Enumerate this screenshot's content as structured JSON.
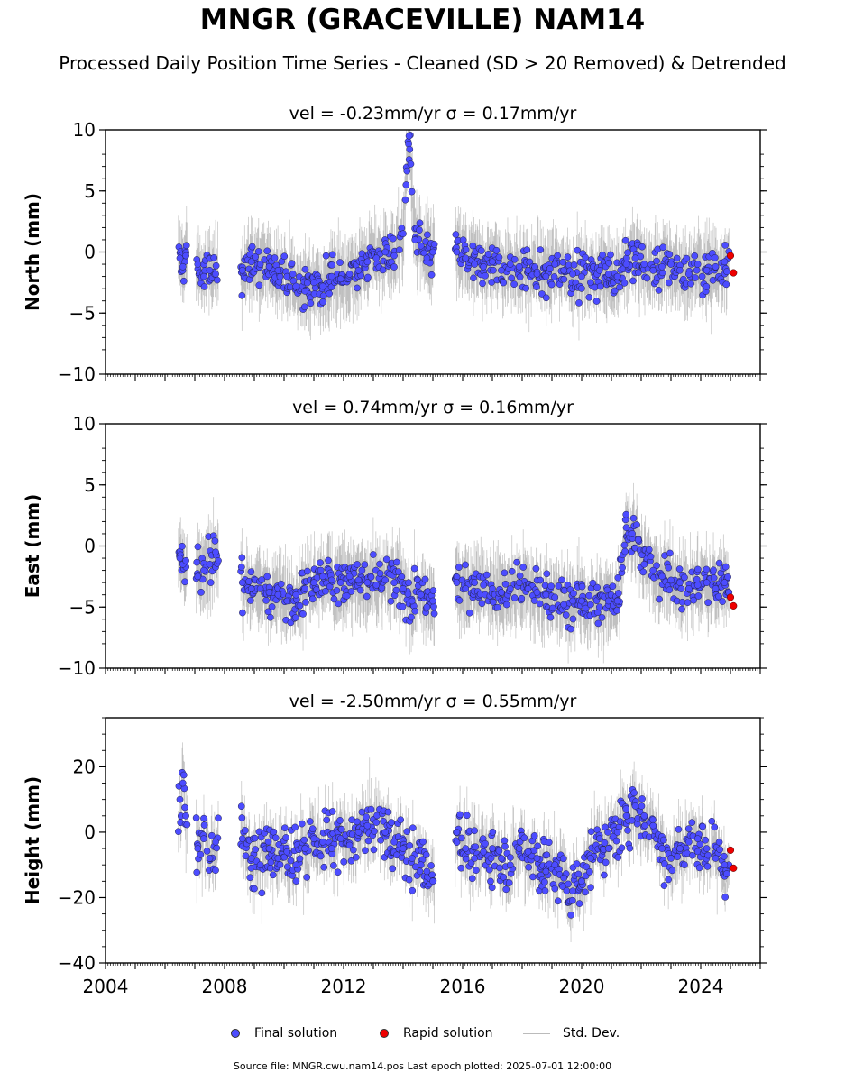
{
  "title": "MNGR (GRACEVILLE) NAM14",
  "subtitle": "Processed Daily Position Time Series - Cleaned (SD > 20 Removed) & Detrended",
  "legend": {
    "final": "Final solution",
    "rapid": "Rapid solution",
    "std": "Std. Dev."
  },
  "source": "Source file: MNGR.cwu.nam14.pos  Last epoch plotted: 2025-07-01 12:00:00",
  "colors": {
    "final": "#4c4cff",
    "rapid": "#ee0000",
    "std": "#888888"
  },
  "chart_data": [
    {
      "type": "scatter",
      "title": "vel = -0.23mm/yr   σ = 0.17mm/yr",
      "ylabel": "North (mm)",
      "xlim": [
        2004,
        2026
      ],
      "ylim": [
        -10,
        10
      ],
      "yticks": [
        -10,
        -5,
        0,
        5,
        10
      ],
      "ytick_labels": [
        "−10",
        "−5",
        "0",
        "5",
        "10"
      ],
      "series": [
        {
          "name": "Final solution",
          "x": [
            2006.5,
            2006.6,
            2006.7,
            2007.1,
            2007.3,
            2007.5,
            2007.7,
            2008.6,
            2008.9,
            2009.2,
            2009.5,
            2009.8,
            2010.1,
            2010.4,
            2010.7,
            2011.0,
            2011.3,
            2011.6,
            2011.9,
            2012.2,
            2012.5,
            2012.8,
            2013.1,
            2013.4,
            2013.7,
            2014.0,
            2014.1,
            2014.2,
            2014.4,
            2014.6,
            2014.8,
            2015.0,
            2015.8,
            2016.1,
            2016.4,
            2016.7,
            2017.0,
            2017.3,
            2017.6,
            2017.9,
            2018.2,
            2018.5,
            2018.8,
            2019.1,
            2019.4,
            2019.7,
            2020.0,
            2020.3,
            2020.6,
            2020.9,
            2021.2,
            2021.5,
            2021.8,
            2022.1,
            2022.4,
            2022.7,
            2023.0,
            2023.3,
            2023.6,
            2023.9,
            2024.2,
            2024.5,
            2024.8
          ],
          "y": [
            -0.5,
            -1.2,
            -0.3,
            -1.0,
            -2.0,
            -1.5,
            -1.8,
            -1.5,
            -0.8,
            -1.0,
            -1.2,
            -1.5,
            -2.0,
            -2.8,
            -3.2,
            -2.5,
            -2.8,
            -2.0,
            -2.2,
            -1.8,
            -1.5,
            -0.8,
            -0.5,
            0.0,
            -0.3,
            1.5,
            5.5,
            9.5,
            1.0,
            0.5,
            -0.5,
            0.0,
            0.0,
            -0.5,
            -1.0,
            -1.2,
            -0.8,
            -1.5,
            -1.0,
            -1.2,
            -1.5,
            -1.8,
            -2.0,
            -1.0,
            -1.5,
            -1.8,
            -2.0,
            -2.5,
            -1.5,
            -1.8,
            -2.0,
            -1.0,
            -0.5,
            -1.0,
            -1.5,
            -1.2,
            -1.0,
            -1.5,
            -1.8,
            -1.0,
            -1.5,
            -1.2,
            -0.8
          ]
        },
        {
          "name": "Rapid solution",
          "x": [
            2025.0,
            2025.1
          ],
          "y": [
            -0.3,
            -1.7
          ]
        }
      ]
    },
    {
      "type": "scatter",
      "title": "vel = 0.74mm/yr   σ = 0.16mm/yr",
      "ylabel": "East (mm)",
      "xlim": [
        2004,
        2026
      ],
      "ylim": [
        -10,
        10
      ],
      "yticks": [
        -10,
        -5,
        0,
        5,
        10
      ],
      "ytick_labels": [
        "−10",
        "−5",
        "0",
        "5",
        "10"
      ],
      "series": [
        {
          "name": "Final solution",
          "x": [
            2006.5,
            2006.6,
            2006.7,
            2007.1,
            2007.3,
            2007.5,
            2007.7,
            2008.6,
            2008.9,
            2009.2,
            2009.5,
            2009.8,
            2010.1,
            2010.4,
            2010.7,
            2011.0,
            2011.3,
            2011.6,
            2011.9,
            2012.2,
            2012.5,
            2012.8,
            2013.1,
            2013.4,
            2013.7,
            2014.0,
            2014.3,
            2014.6,
            2014.8,
            2015.0,
            2015.8,
            2016.1,
            2016.4,
            2016.7,
            2017.0,
            2017.3,
            2017.6,
            2017.9,
            2018.2,
            2018.5,
            2018.8,
            2019.1,
            2019.4,
            2019.7,
            2020.0,
            2020.3,
            2020.6,
            2020.9,
            2021.2,
            2021.5,
            2021.7,
            2021.9,
            2022.1,
            2022.4,
            2022.7,
            2023.0,
            2023.3,
            2023.6,
            2023.9,
            2024.2,
            2024.5,
            2024.8
          ],
          "y": [
            -1.0,
            -1.5,
            -1.2,
            -2.5,
            -2.0,
            -1.5,
            -0.5,
            -3.0,
            -3.5,
            -3.5,
            -3.8,
            -4.0,
            -4.5,
            -4.0,
            -3.5,
            -3.0,
            -2.5,
            -2.8,
            -3.0,
            -2.5,
            -2.8,
            -3.0,
            -3.2,
            -2.8,
            -3.0,
            -3.5,
            -4.5,
            -4.0,
            -5.0,
            -4.5,
            -3.0,
            -3.5,
            -3.0,
            -3.2,
            -3.5,
            -3.8,
            -3.5,
            -3.0,
            -3.5,
            -3.8,
            -4.0,
            -4.2,
            -4.8,
            -4.5,
            -4.5,
            -4.8,
            -5.0,
            -4.5,
            -4.5,
            1.5,
            1.0,
            0.5,
            -1.5,
            -2.0,
            -2.5,
            -2.8,
            -3.0,
            -3.5,
            -3.2,
            -3.0,
            -3.5,
            -3.0
          ]
        },
        {
          "name": "Rapid solution",
          "x": [
            2025.0,
            2025.1
          ],
          "y": [
            -4.2,
            -4.9
          ]
        }
      ]
    },
    {
      "type": "scatter",
      "title": "vel = -2.50mm/yr   σ = 0.55mm/yr",
      "ylabel": "Height (mm)",
      "xlim": [
        2004,
        2026
      ],
      "ylim": [
        -40,
        35
      ],
      "yticks": [
        -40,
        -20,
        0,
        20
      ],
      "ytick_labels": [
        "−40",
        "−20",
        "0",
        "20"
      ],
      "xticks": [
        2004,
        2008,
        2012,
        2016,
        2020,
        2024
      ],
      "xtick_labels": [
        "2004",
        "2008",
        "2012",
        "2016",
        "2020",
        "2024"
      ],
      "series": [
        {
          "name": "Final solution",
          "x": [
            2006.5,
            2006.6,
            2006.7,
            2007.1,
            2007.3,
            2007.5,
            2007.7,
            2008.6,
            2008.9,
            2009.2,
            2009.5,
            2009.8,
            2010.1,
            2010.4,
            2010.7,
            2011.0,
            2011.3,
            2011.6,
            2011.9,
            2012.2,
            2012.5,
            2012.8,
            2013.1,
            2013.4,
            2013.7,
            2014.0,
            2014.3,
            2014.6,
            2014.8,
            2015.0,
            2015.8,
            2016.1,
            2016.4,
            2016.7,
            2017.0,
            2017.3,
            2017.6,
            2017.9,
            2018.2,
            2018.5,
            2018.8,
            2019.1,
            2019.4,
            2019.7,
            2020.0,
            2020.3,
            2020.6,
            2020.9,
            2021.2,
            2021.5,
            2021.8,
            2022.1,
            2022.4,
            2022.7,
            2023.0,
            2023.3,
            2023.6,
            2023.9,
            2024.2,
            2024.5,
            2024.8
          ],
          "y": [
            10,
            15,
            5,
            -5,
            -2,
            -8,
            -3,
            -2,
            -8,
            -10,
            -5,
            -8,
            -6,
            -10,
            -5,
            -2,
            -3,
            -5,
            -2,
            -4,
            0,
            2,
            3,
            0,
            -3,
            -5,
            -8,
            -10,
            -12,
            -15,
            0,
            -5,
            -8,
            -6,
            -5,
            -8,
            -10,
            -5,
            -6,
            -8,
            -12,
            -10,
            -14,
            -18,
            -15,
            -8,
            -2,
            -5,
            0,
            5,
            8,
            5,
            2,
            -5,
            -8,
            -5,
            -3,
            -2,
            -5,
            -8,
            -10
          ]
        },
        {
          "name": "Rapid solution",
          "x": [
            2025.0,
            2025.1
          ],
          "y": [
            -5.5,
            -11
          ]
        }
      ]
    }
  ]
}
